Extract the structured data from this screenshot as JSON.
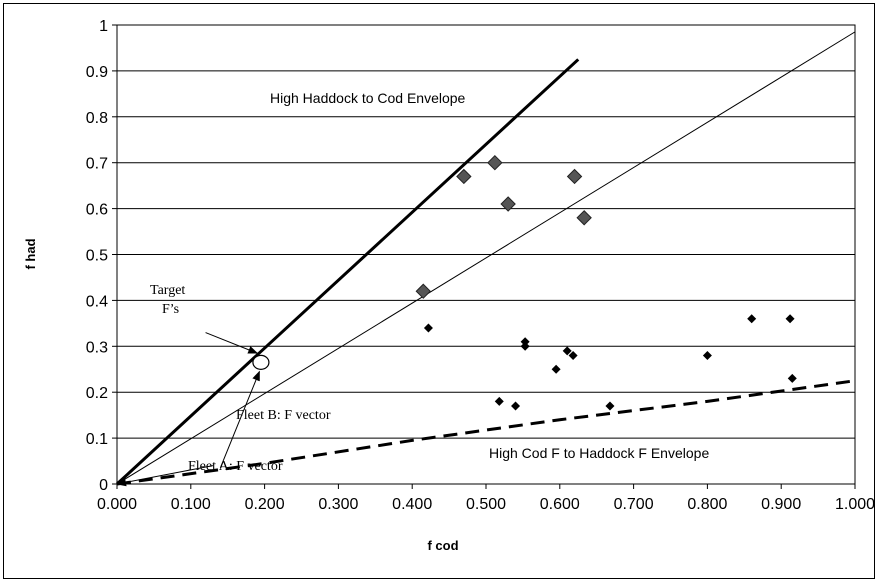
{
  "chart_data": {
    "type": "scatter",
    "title": "",
    "xlabel": "f cod",
    "ylabel": "f had",
    "xlim": [
      0,
      1
    ],
    "ylim": [
      0,
      1
    ],
    "grid": "horizontal",
    "x_ticks": [
      "0.000",
      "0.100",
      "0.200",
      "0.300",
      "0.400",
      "0.500",
      "0.600",
      "0.700",
      "0.800",
      "0.900",
      "1.000"
    ],
    "y_ticks": [
      "0",
      "0.1",
      "0.2",
      "0.3",
      "0.4",
      "0.5",
      "0.6",
      "0.7",
      "0.8",
      "0.9",
      "1"
    ],
    "series": [
      {
        "marker": "large-diamond",
        "color": "#555555",
        "points": [
          [
            0.415,
            0.42
          ],
          [
            0.47,
            0.67
          ],
          [
            0.512,
            0.7
          ],
          [
            0.53,
            0.61
          ],
          [
            0.62,
            0.67
          ],
          [
            0.633,
            0.58
          ]
        ]
      },
      {
        "marker": "small-diamond",
        "color": "#000000",
        "points": [
          [
            0.422,
            0.34
          ],
          [
            0.518,
            0.18
          ],
          [
            0.54,
            0.17
          ],
          [
            0.553,
            0.31
          ],
          [
            0.553,
            0.3
          ],
          [
            0.595,
            0.25
          ],
          [
            0.61,
            0.29
          ],
          [
            0.618,
            0.28
          ],
          [
            0.668,
            0.17
          ],
          [
            0.8,
            0.28
          ],
          [
            0.86,
            0.36
          ],
          [
            0.912,
            0.36
          ],
          [
            0.915,
            0.23
          ]
        ]
      },
      {
        "marker": "open-circle",
        "color": "#ffffff",
        "points": [
          [
            0.195,
            0.265
          ]
        ]
      }
    ],
    "lines": [
      {
        "style": "thick-solid",
        "points": [
          [
            0,
            0
          ],
          [
            0.625,
            0.925
          ]
        ]
      },
      {
        "style": "thin-solid",
        "points": [
          [
            0,
            0
          ],
          [
            1.0,
            0.985
          ]
        ]
      },
      {
        "style": "thick-dashed",
        "points": [
          [
            0,
            0
          ],
          [
            0.2,
            0.045
          ],
          [
            0.4,
            0.095
          ],
          [
            0.6,
            0.14
          ],
          [
            0.8,
            0.18
          ],
          [
            1.0,
            0.225
          ]
        ]
      }
    ],
    "annotations": [
      {
        "id": "haddock_env",
        "text": "High Haddock to Cod Envelope",
        "font": "sans"
      },
      {
        "id": "cod_env",
        "text": "High Cod F to Haddock F Envelope",
        "font": "sans"
      },
      {
        "id": "target_1",
        "text": "Target",
        "font": "serif"
      },
      {
        "id": "target_2",
        "text": "F’s",
        "font": "serif"
      },
      {
        "id": "fleet_b",
        "text": "Fleet B: F vector",
        "font": "serif"
      },
      {
        "id": "fleet_a",
        "text": "Fleet A: F vector",
        "font": "serif"
      }
    ],
    "arrows": [
      {
        "from": [
          0.12,
          0.33
        ],
        "to": [
          0.19,
          0.285
        ]
      },
      {
        "from": [
          0.14,
          0.035
        ],
        "to": [
          0.193,
          0.245
        ]
      },
      {
        "from": [
          0.13,
          0.04
        ],
        "to": [
          0.0,
          0.0
        ]
      }
    ]
  }
}
